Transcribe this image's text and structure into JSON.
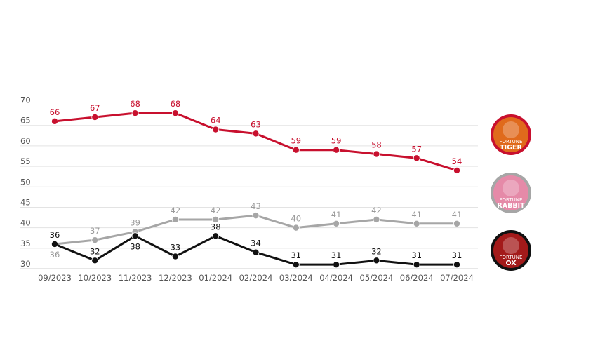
{
  "chart_data": {
    "type": "line",
    "categories": [
      "09/2023",
      "10/2023",
      "11/2023",
      "12/2023",
      "01/2024",
      "02/2024",
      "03/2024",
      "04/2024",
      "05/2024",
      "06/2024",
      "07/2024"
    ],
    "ylim": [
      30,
      70
    ],
    "yticks": [
      30,
      35,
      40,
      45,
      50,
      55,
      60,
      65,
      70
    ],
    "grid": true,
    "legend": "right (game badges)",
    "series": [
      {
        "name": "FORTUNE TIGER",
        "color": "#c8102e",
        "label_color": "#c8102e",
        "values": [
          66,
          67,
          68,
          68,
          64,
          63,
          59,
          59,
          58,
          57,
          54
        ],
        "label_pos": [
          "above",
          "above",
          "above",
          "above",
          "above",
          "above",
          "above",
          "above",
          "above",
          "above",
          "above"
        ]
      },
      {
        "name": "FORTUNE RABBIT",
        "color": "#a6a6a6",
        "label_color": "#9a9a9a",
        "values": [
          36,
          37,
          39,
          42,
          42,
          43,
          40,
          41,
          42,
          41,
          41
        ],
        "label_pos": [
          "below",
          "above",
          "above",
          "above",
          "above",
          "above",
          "above",
          "above",
          "above",
          "above",
          "above"
        ]
      },
      {
        "name": "FORTUNE OX",
        "color": "#111111",
        "label_color": "#111111",
        "values": [
          36,
          32,
          38,
          33,
          38,
          34,
          31,
          31,
          32,
          31,
          31
        ],
        "label_pos": [
          "above",
          "above",
          "below",
          "above",
          "above",
          "above",
          "above",
          "above",
          "above",
          "above",
          "above"
        ]
      }
    ]
  },
  "legend_badges": [
    {
      "line1": "FORTUNE",
      "line2": "TIGER",
      "ring": "#c8102e",
      "bg": "#e06a1c",
      "icon": "tiger-icon"
    },
    {
      "line1": "FORTUNE",
      "line2": "RABBIT",
      "ring": "#a6a6a6",
      "bg": "#e58aa8",
      "icon": "rabbit-icon"
    },
    {
      "line1": "FORTUNE",
      "line2": "OX",
      "ring": "#111111",
      "bg": "#a31a1a",
      "icon": "ox-icon"
    }
  ]
}
